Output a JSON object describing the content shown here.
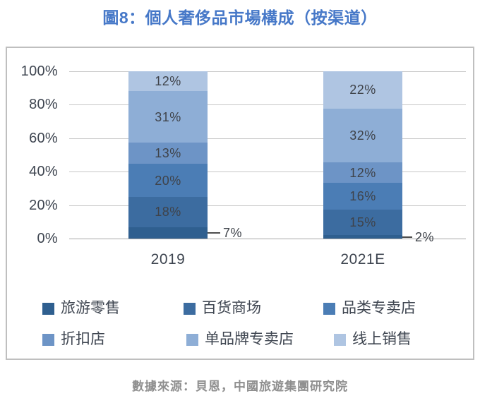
{
  "page": {
    "title": "圖8：個人奢侈品市場構成（按渠道）",
    "source": "數據來源：貝恩，中國旅遊集團研究院"
  },
  "colors": {
    "title_text": "#4678C8",
    "tick_text": "#3E4550",
    "category_text": "#3E4550",
    "segment_label_text": "#3F434A",
    "legend_text": "#3E4550",
    "source_text": "#8F8F8F",
    "gridline": "#C7C7C7",
    "axis_line": "#A8A8A8",
    "callout_line": "#4D4D4D",
    "box_border": "#BFBFBF"
  },
  "chart_data": {
    "type": "bar",
    "stacking": "percent",
    "title": "圖8：個人奢侈品市場構成（按渠道）",
    "categories": [
      "2019",
      "2021E"
    ],
    "series": [
      {
        "name": "旅游零售",
        "values": [
          7,
          2
        ],
        "labels": [
          "7%",
          "2%"
        ],
        "color": "#2F5F8F",
        "labels_outside": true
      },
      {
        "name": "百货商场",
        "values": [
          18,
          15
        ],
        "labels": [
          "18%",
          "15%"
        ],
        "color": "#3C6CA0"
      },
      {
        "name": "品类专卖店",
        "values": [
          20,
          16
        ],
        "labels": [
          "20%",
          "16%"
        ],
        "color": "#4B7DB5"
      },
      {
        "name": "折扣店",
        "values": [
          13,
          12
        ],
        "labels": [
          "13%",
          "12%"
        ],
        "color": "#6D94C6"
      },
      {
        "name": "单品牌专卖店",
        "values": [
          31,
          32
        ],
        "labels": [
          "31%",
          "32%"
        ],
        "color": "#8EAED6"
      },
      {
        "name": "线上销售",
        "values": [
          12,
          22
        ],
        "labels": [
          "12%",
          "22%"
        ],
        "color": "#AFC5E2"
      }
    ],
    "y_ticks": [
      "100%",
      "80%",
      "60%",
      "40%",
      "20%",
      "0%"
    ],
    "ylim": [
      0,
      100
    ],
    "grid": true,
    "legend_position": "bottom"
  }
}
